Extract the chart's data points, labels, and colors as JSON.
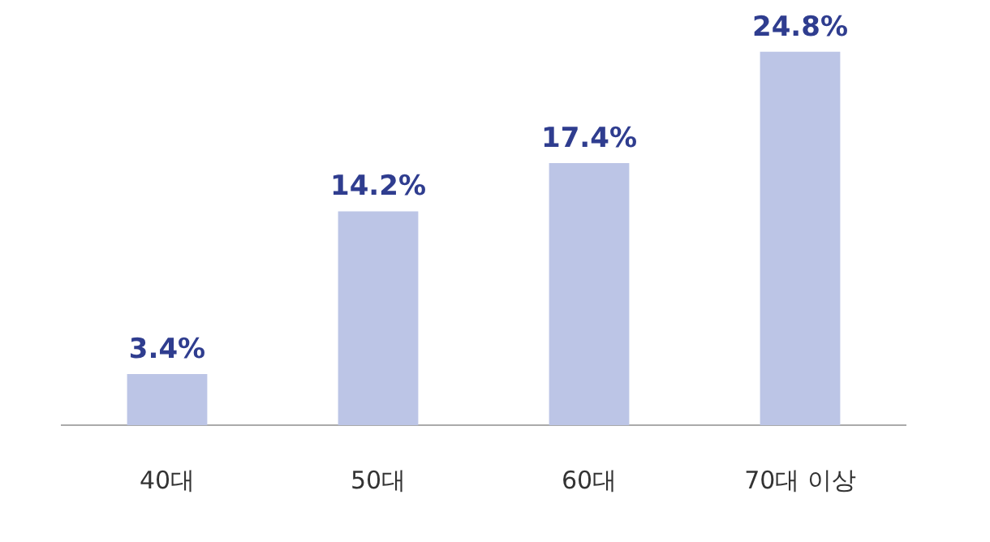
{
  "chart_data": {
    "type": "bar",
    "categories": [
      "40대",
      "50대",
      "60대",
      "70대 이상"
    ],
    "values": [
      3.4,
      14.2,
      17.4,
      24.8
    ],
    "color": "#bcc5e6",
    "value_labels": [
      "3.4%",
      "14.2%",
      "17.4%",
      "24.8%"
    ],
    "grid": false,
    "legend": false
  }
}
